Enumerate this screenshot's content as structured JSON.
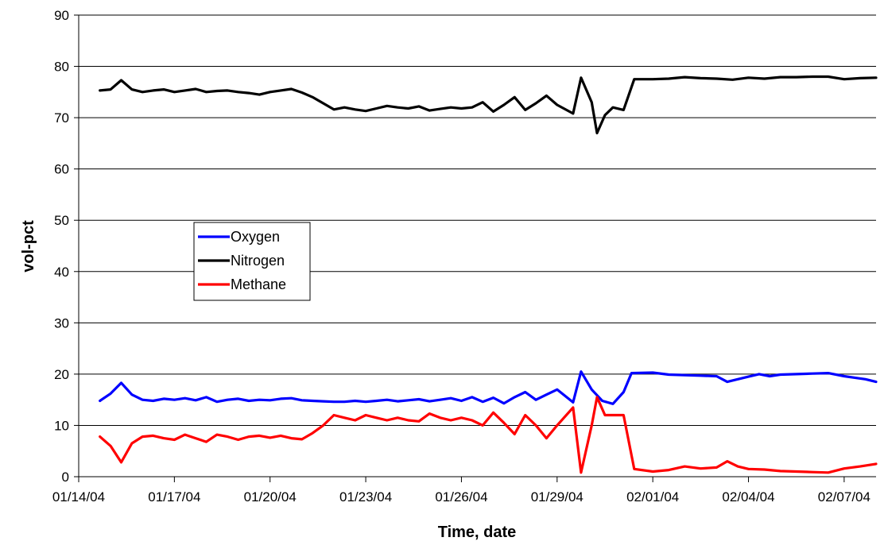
{
  "chart_data": {
    "type": "line",
    "title": "",
    "xlabel": "Time, date",
    "ylabel": "vol-pct",
    "ylim": [
      0,
      90
    ],
    "yticks": [
      0,
      10,
      20,
      30,
      40,
      50,
      60,
      70,
      80,
      90
    ],
    "ytick_labels": [
      "0",
      "10",
      "20",
      "30",
      "40",
      "50",
      "60",
      "70",
      "80",
      "90"
    ],
    "xlim": [
      "2004-01-14",
      "2004-02-08"
    ],
    "xticks": [
      "2004-01-14",
      "2004-01-17",
      "2004-01-20",
      "2004-01-23",
      "2004-01-26",
      "2004-01-29",
      "2004-02-01",
      "2004-02-04",
      "2004-02-07"
    ],
    "xtick_labels": [
      "01/14/04",
      "01/17/04",
      "01/20/04",
      "01/23/04",
      "01/26/04",
      "01/29/04",
      "02/01/04",
      "02/04/04",
      "02/07/04"
    ],
    "grid": "horizontal",
    "legend": "center-left",
    "series": [
      {
        "name": "Oxygen",
        "color": "#0000ff",
        "points": [
          [
            "2004-01-14 16:00",
            14.8
          ],
          [
            "2004-01-15 00:00",
            16.2
          ],
          [
            "2004-01-15 08:00",
            18.3
          ],
          [
            "2004-01-15 16:00",
            16
          ],
          [
            "2004-01-16 00:00",
            15
          ],
          [
            "2004-01-16 08:00",
            14.8
          ],
          [
            "2004-01-16 16:00",
            15.2
          ],
          [
            "2004-01-17 00:00",
            15
          ],
          [
            "2004-01-17 08:00",
            15.3
          ],
          [
            "2004-01-17 16:00",
            14.9
          ],
          [
            "2004-01-18 00:00",
            15.5
          ],
          [
            "2004-01-18 08:00",
            14.6
          ],
          [
            "2004-01-18 16:00",
            15
          ],
          [
            "2004-01-19 00:00",
            15.2
          ],
          [
            "2004-01-19 08:00",
            14.8
          ],
          [
            "2004-01-19 16:00",
            15
          ],
          [
            "2004-01-20 00:00",
            14.9
          ],
          [
            "2004-01-20 08:00",
            15.2
          ],
          [
            "2004-01-20 16:00",
            15.3
          ],
          [
            "2004-01-21 00:00",
            14.9
          ],
          [
            "2004-01-21 08:00",
            14.8
          ],
          [
            "2004-01-21 16:00",
            14.7
          ],
          [
            "2004-01-22 00:00",
            14.6
          ],
          [
            "2004-01-22 08:00",
            14.6
          ],
          [
            "2004-01-22 16:00",
            14.8
          ],
          [
            "2004-01-23 00:00",
            14.6
          ],
          [
            "2004-01-23 08:00",
            14.8
          ],
          [
            "2004-01-23 16:00",
            15
          ],
          [
            "2004-01-24 00:00",
            14.7
          ],
          [
            "2004-01-24 08:00",
            14.9
          ],
          [
            "2004-01-24 16:00",
            15.1
          ],
          [
            "2004-01-25 00:00",
            14.7
          ],
          [
            "2004-01-25 08:00",
            15
          ],
          [
            "2004-01-25 16:00",
            15.3
          ],
          [
            "2004-01-26 00:00",
            14.8
          ],
          [
            "2004-01-26 08:00",
            15.5
          ],
          [
            "2004-01-26 16:00",
            14.6
          ],
          [
            "2004-01-27 00:00",
            15.4
          ],
          [
            "2004-01-27 08:00",
            14.3
          ],
          [
            "2004-01-27 16:00",
            15.5
          ],
          [
            "2004-01-28 00:00",
            16.5
          ],
          [
            "2004-01-28 08:00",
            15
          ],
          [
            "2004-01-28 16:00",
            16
          ],
          [
            "2004-01-29 00:00",
            17
          ],
          [
            "2004-01-29 12:00",
            14.5
          ],
          [
            "2004-01-29 18:00",
            20.5
          ],
          [
            "2004-01-30 02:00",
            17
          ],
          [
            "2004-01-30 10:00",
            14.8
          ],
          [
            "2004-01-30 18:00",
            14.2
          ],
          [
            "2004-01-31 02:00",
            16.5
          ],
          [
            "2004-01-31 08:00",
            20.2
          ],
          [
            "2004-02-01 00:00",
            20.3
          ],
          [
            "2004-02-01 12:00",
            19.9
          ],
          [
            "2004-02-02 00:00",
            19.8
          ],
          [
            "2004-02-02 12:00",
            19.7
          ],
          [
            "2004-02-03 00:00",
            19.6
          ],
          [
            "2004-02-03 08:00",
            18.5
          ],
          [
            "2004-02-03 16:00",
            19
          ],
          [
            "2004-02-04 00:00",
            19.5
          ],
          [
            "2004-02-04 08:00",
            20
          ],
          [
            "2004-02-04 16:00",
            19.6
          ],
          [
            "2004-02-05 00:00",
            19.9
          ],
          [
            "2004-02-05 12:00",
            20
          ],
          [
            "2004-02-06 00:00",
            20.1
          ],
          [
            "2004-02-06 12:00",
            20.2
          ],
          [
            "2004-02-07 00:00",
            19.6
          ],
          [
            "2004-02-07 08:00",
            19.3
          ],
          [
            "2004-02-07 16:00",
            19
          ],
          [
            "2004-02-08 00:00",
            18.5
          ]
        ]
      },
      {
        "name": "Nitrogen",
        "color": "#000000",
        "points": [
          [
            "2004-01-14 16:00",
            75.3
          ],
          [
            "2004-01-15 00:00",
            75.5
          ],
          [
            "2004-01-15 08:00",
            77.3
          ],
          [
            "2004-01-15 16:00",
            75.5
          ],
          [
            "2004-01-16 00:00",
            75
          ],
          [
            "2004-01-16 08:00",
            75.3
          ],
          [
            "2004-01-16 16:00",
            75.5
          ],
          [
            "2004-01-17 00:00",
            75
          ],
          [
            "2004-01-17 08:00",
            75.3
          ],
          [
            "2004-01-17 16:00",
            75.6
          ],
          [
            "2004-01-18 00:00",
            75
          ],
          [
            "2004-01-18 08:00",
            75.2
          ],
          [
            "2004-01-18 16:00",
            75.3
          ],
          [
            "2004-01-19 00:00",
            75
          ],
          [
            "2004-01-19 08:00",
            74.8
          ],
          [
            "2004-01-19 16:00",
            74.5
          ],
          [
            "2004-01-20 00:00",
            75
          ],
          [
            "2004-01-20 08:00",
            75.3
          ],
          [
            "2004-01-20 16:00",
            75.6
          ],
          [
            "2004-01-21 00:00",
            74.9
          ],
          [
            "2004-01-21 08:00",
            74
          ],
          [
            "2004-01-21 16:00",
            72.8
          ],
          [
            "2004-01-22 00:00",
            71.6
          ],
          [
            "2004-01-22 08:00",
            72
          ],
          [
            "2004-01-22 16:00",
            71.6
          ],
          [
            "2004-01-23 00:00",
            71.3
          ],
          [
            "2004-01-23 08:00",
            71.8
          ],
          [
            "2004-01-23 16:00",
            72.3
          ],
          [
            "2004-01-24 00:00",
            72
          ],
          [
            "2004-01-24 08:00",
            71.8
          ],
          [
            "2004-01-24 16:00",
            72.2
          ],
          [
            "2004-01-25 00:00",
            71.4
          ],
          [
            "2004-01-25 08:00",
            71.7
          ],
          [
            "2004-01-25 16:00",
            72
          ],
          [
            "2004-01-26 00:00",
            71.8
          ],
          [
            "2004-01-26 08:00",
            72
          ],
          [
            "2004-01-26 16:00",
            73
          ],
          [
            "2004-01-27 00:00",
            71.2
          ],
          [
            "2004-01-27 08:00",
            72.5
          ],
          [
            "2004-01-27 16:00",
            74
          ],
          [
            "2004-01-28 00:00",
            71.5
          ],
          [
            "2004-01-28 08:00",
            72.8
          ],
          [
            "2004-01-28 16:00",
            74.3
          ],
          [
            "2004-01-29 00:00",
            72.5
          ],
          [
            "2004-01-29 12:00",
            70.8
          ],
          [
            "2004-01-29 18:00",
            77.8
          ],
          [
            "2004-01-30 02:00",
            73
          ],
          [
            "2004-01-30 06:00",
            67
          ],
          [
            "2004-01-30 12:00",
            70.5
          ],
          [
            "2004-01-30 18:00",
            72
          ],
          [
            "2004-01-31 02:00",
            71.5
          ],
          [
            "2004-01-31 10:00",
            77.5
          ],
          [
            "2004-02-01 00:00",
            77.5
          ],
          [
            "2004-02-01 12:00",
            77.6
          ],
          [
            "2004-02-02 00:00",
            77.9
          ],
          [
            "2004-02-02 12:00",
            77.7
          ],
          [
            "2004-02-03 00:00",
            77.6
          ],
          [
            "2004-02-03 12:00",
            77.4
          ],
          [
            "2004-02-04 00:00",
            77.8
          ],
          [
            "2004-02-04 12:00",
            77.6
          ],
          [
            "2004-02-05 00:00",
            77.9
          ],
          [
            "2004-02-05 12:00",
            77.9
          ],
          [
            "2004-02-06 00:00",
            78
          ],
          [
            "2004-02-06 12:00",
            78
          ],
          [
            "2004-02-07 00:00",
            77.5
          ],
          [
            "2004-02-07 12:00",
            77.7
          ],
          [
            "2004-02-08 00:00",
            77.8
          ]
        ]
      },
      {
        "name": "Methane",
        "color": "#ff0000",
        "points": [
          [
            "2004-01-14 16:00",
            7.8
          ],
          [
            "2004-01-15 00:00",
            6
          ],
          [
            "2004-01-15 08:00",
            2.8
          ],
          [
            "2004-01-15 16:00",
            6.5
          ],
          [
            "2004-01-16 00:00",
            7.8
          ],
          [
            "2004-01-16 08:00",
            8
          ],
          [
            "2004-01-16 16:00",
            7.5
          ],
          [
            "2004-01-17 00:00",
            7.2
          ],
          [
            "2004-01-17 08:00",
            8.2
          ],
          [
            "2004-01-17 16:00",
            7.5
          ],
          [
            "2004-01-18 00:00",
            6.8
          ],
          [
            "2004-01-18 08:00",
            8.2
          ],
          [
            "2004-01-18 16:00",
            7.8
          ],
          [
            "2004-01-19 00:00",
            7.2
          ],
          [
            "2004-01-19 08:00",
            7.8
          ],
          [
            "2004-01-19 16:00",
            8
          ],
          [
            "2004-01-20 00:00",
            7.6
          ],
          [
            "2004-01-20 08:00",
            8
          ],
          [
            "2004-01-20 16:00",
            7.5
          ],
          [
            "2004-01-21 00:00",
            7.3
          ],
          [
            "2004-01-21 08:00",
            8.5
          ],
          [
            "2004-01-21 16:00",
            10
          ],
          [
            "2004-01-22 00:00",
            12
          ],
          [
            "2004-01-22 08:00",
            11.5
          ],
          [
            "2004-01-22 16:00",
            11
          ],
          [
            "2004-01-23 00:00",
            12
          ],
          [
            "2004-01-23 08:00",
            11.5
          ],
          [
            "2004-01-23 16:00",
            11
          ],
          [
            "2004-01-24 00:00",
            11.5
          ],
          [
            "2004-01-24 08:00",
            11
          ],
          [
            "2004-01-24 16:00",
            10.8
          ],
          [
            "2004-01-25 00:00",
            12.3
          ],
          [
            "2004-01-25 08:00",
            11.5
          ],
          [
            "2004-01-25 16:00",
            11
          ],
          [
            "2004-01-26 00:00",
            11.5
          ],
          [
            "2004-01-26 08:00",
            11
          ],
          [
            "2004-01-26 16:00",
            10
          ],
          [
            "2004-01-27 00:00",
            12.5
          ],
          [
            "2004-01-27 08:00",
            10.5
          ],
          [
            "2004-01-27 16:00",
            8.3
          ],
          [
            "2004-01-28 00:00",
            12
          ],
          [
            "2004-01-28 08:00",
            10
          ],
          [
            "2004-01-28 16:00",
            7.5
          ],
          [
            "2004-01-29 00:00",
            10
          ],
          [
            "2004-01-29 12:00",
            13.5
          ],
          [
            "2004-01-29 18:00",
            0.8
          ],
          [
            "2004-01-30 02:00",
            10
          ],
          [
            "2004-01-30 06:00",
            15.5
          ],
          [
            "2004-01-30 12:00",
            12
          ],
          [
            "2004-01-30 18:00",
            12
          ],
          [
            "2004-01-31 02:00",
            12
          ],
          [
            "2004-01-31 10:00",
            1.5
          ],
          [
            "2004-02-01 00:00",
            1
          ],
          [
            "2004-02-01 12:00",
            1.3
          ],
          [
            "2004-02-02 00:00",
            2
          ],
          [
            "2004-02-02 12:00",
            1.6
          ],
          [
            "2004-02-03 00:00",
            1.8
          ],
          [
            "2004-02-03 08:00",
            3
          ],
          [
            "2004-02-03 16:00",
            2
          ],
          [
            "2004-02-04 00:00",
            1.5
          ],
          [
            "2004-02-04 12:00",
            1.4
          ],
          [
            "2004-02-05 00:00",
            1.1
          ],
          [
            "2004-02-05 12:00",
            1
          ],
          [
            "2004-02-06 00:00",
            0.9
          ],
          [
            "2004-02-06 12:00",
            0.8
          ],
          [
            "2004-02-07 00:00",
            1.6
          ],
          [
            "2004-02-07 12:00",
            2
          ],
          [
            "2004-02-08 00:00",
            2.5
          ]
        ]
      }
    ]
  }
}
